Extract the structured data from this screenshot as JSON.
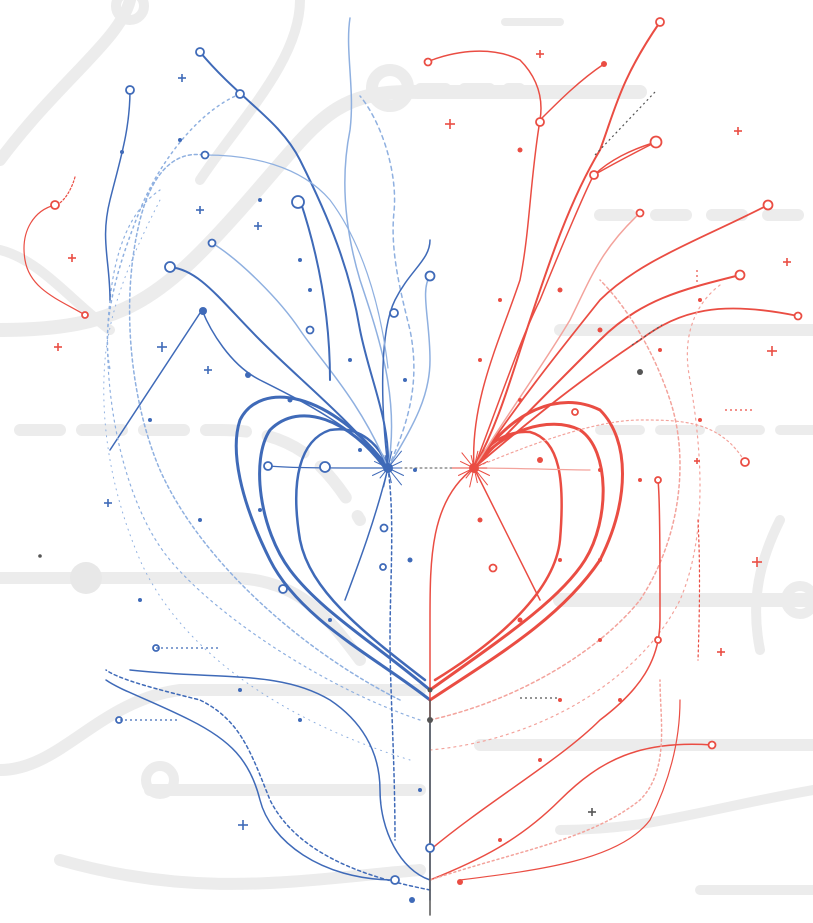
{
  "image": {
    "subject": "heart-circuit-illustration",
    "background_color": "#ffffff",
    "circuit_trace_color": "#ececec",
    "left_half_color": "#3f6ab8",
    "left_half_light_color": "#8fb0e0",
    "right_half_color": "#ea4d43",
    "right_half_light_color": "#f3a39c",
    "accent_dark_color": "#555555",
    "icons": [
      "plus-icon",
      "node-ring-icon",
      "junction-dot-icon"
    ]
  }
}
